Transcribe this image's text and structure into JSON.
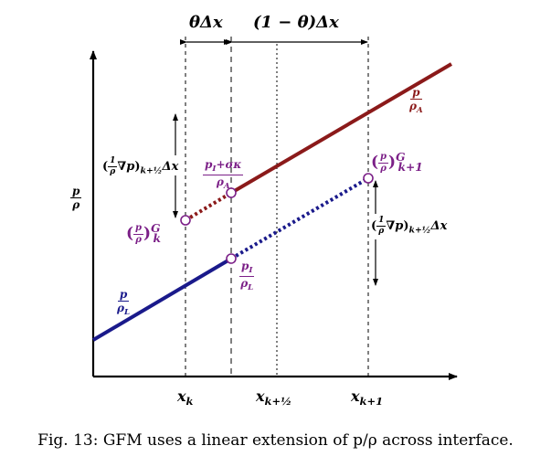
{
  "labels": {
    "y_axis": "p/ρ",
    "theta_dx": "θΔx",
    "one_minus_theta_dx": "(1 − θ)Δx",
    "x_k": "x",
    "x_k_sub": "k",
    "x_k_half": "x",
    "x_k_half_sub": "k+½",
    "x_k1": "x",
    "x_k1_sub": "k+1",
    "p_over_rhoA_num": "p",
    "p_over_rhoA_den": "ρ_A",
    "p_over_rhoL_num": "p",
    "p_over_rhoL_den": "ρ_L",
    "interface_upper_num": "p_I+σκ",
    "interface_upper_den": "ρ_A",
    "interface_lower_num": "p_I",
    "interface_lower_den": "ρ_L",
    "ghost_k": "(p/ρ)",
    "ghost_k_sup": "G",
    "ghost_k_sub": "k",
    "ghost_k1": "(p/ρ)",
    "ghost_k1_sup": "G",
    "ghost_k1_sub": "k+1",
    "grad_left": "(1/ρ ∇p)",
    "grad_left_sub": "k+½",
    "grad_left_tail": "Δx",
    "grad_right": "(1/ρ ∇p)",
    "grad_right_sub": "k+½",
    "grad_right_tail": "Δx"
  },
  "caption": "Fig. 13: GFM uses a linear extension of p/ρ across interface.",
  "colors": {
    "red_line": "#8b1a1a",
    "blue_line": "#1a1a8b",
    "marker": "#7b1f87",
    "axis": "#000000"
  }
}
